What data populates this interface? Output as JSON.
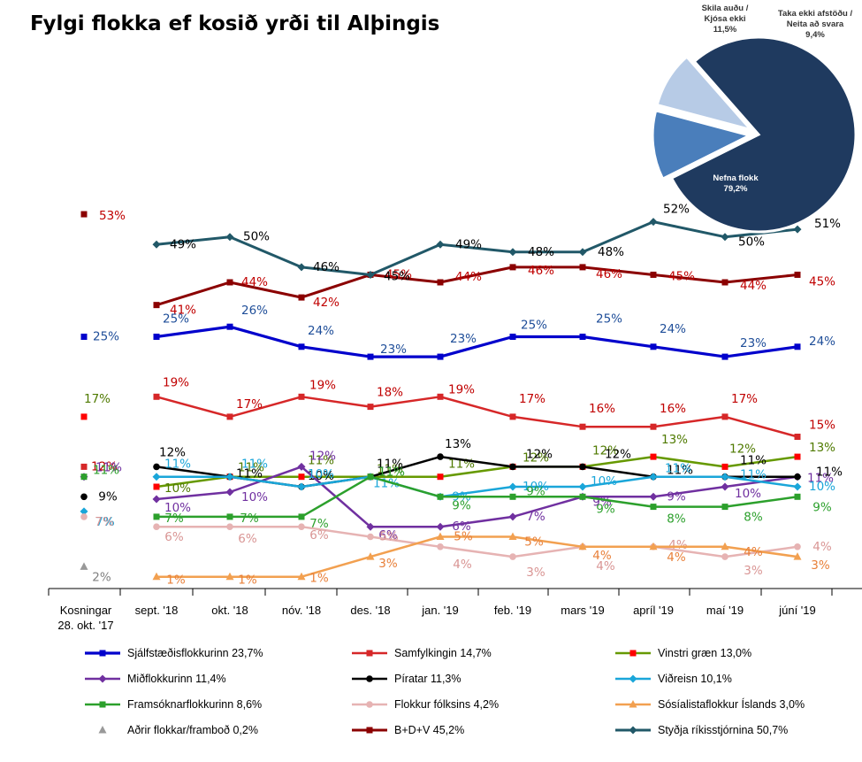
{
  "title": "Fylgi flokka ef kosið yrði til Alþingis",
  "chart_data": [
    {
      "type": "line",
      "categories": [
        "Kosningar\n28. okt. '17",
        "sept. '18",
        "okt. '18",
        "nóv. '18",
        "des. '18",
        "jan. '19",
        "feb. '19",
        "mars '19",
        "apríl '19",
        "maí '19",
        "júní '19"
      ],
      "series": [
        {
          "name": "Sjálfstæðisflokkurinn 23,7%",
          "color": "#0000cc",
          "marker": "square",
          "width": 3.2,
          "values": [
            25,
            25,
            26,
            24,
            23,
            23,
            25,
            25,
            24,
            23,
            24
          ],
          "labels": [
            "25%",
            "25%",
            "26%",
            "24%",
            "23%",
            "23%",
            "25%",
            "25%",
            "24%",
            "23%",
            "24%"
          ],
          "label_color": "#1f4e99"
        },
        {
          "name": "Samfylkingin 14,7%",
          "color": "#d62728",
          "marker": "square",
          "width": 2.5,
          "values": [
            12,
            19,
            17,
            19,
            18,
            19,
            17,
            16,
            16,
            17,
            15
          ],
          "labels": [
            "12%",
            "19%",
            "17%",
            "19%",
            "18%",
            "19%",
            "17%",
            "16%",
            "16%",
            "17%",
            "15%"
          ],
          "label_color": "#c00000"
        },
        {
          "name": "Vinstri græn 13,0%",
          "color": "#669900",
          "marker": "square-red",
          "width": 2.5,
          "values": [
            17,
            10,
            11,
            11,
            11,
            11,
            12,
            12,
            13,
            12,
            13
          ],
          "labels": [
            "17%",
            "10%",
            "11%",
            "11%",
            "11%",
            "11%",
            "12%",
            "12%",
            "13%",
            "12%",
            "13%"
          ],
          "label_color": "#4f7a00"
        },
        {
          "name": "Miðflokkurinn 11,4%",
          "color": "#7030a0",
          "marker": "diamond",
          "width": 2.5,
          "values": [
            11,
            10,
            10,
            12,
            6,
            6,
            7,
            9,
            9,
            10,
            11
          ],
          "labels": [
            "11%",
            "10%",
            "10%",
            "12%",
            "6%",
            "6%",
            "7%",
            "9%",
            "9%",
            "10%",
            "11%"
          ],
          "label_color": "#7030a0"
        },
        {
          "name": "Píratar 11,3%",
          "color": "#000000",
          "marker": "circle",
          "width": 2.5,
          "values": [
            9,
            12,
            11,
            10,
            11,
            13,
            12,
            12,
            11,
            11,
            11
          ],
          "labels": [
            "9%",
            "12%",
            "11%",
            "10%",
            "11%",
            "13%",
            "12%",
            "12%",
            "11%",
            "11%",
            "11%"
          ],
          "label_color": "#000000"
        },
        {
          "name": "Viðreisn 10,1%",
          "color": "#1aa6d9",
          "marker": "diamond",
          "width": 2.5,
          "values": [
            7,
            11,
            11,
            10,
            11,
            9,
            10,
            10,
            11,
            11,
            10
          ],
          "labels": [
            "7%",
            "11%",
            "11%",
            "10%",
            "11%",
            "9%",
            "10%",
            "10%",
            "11%",
            "11%",
            "10%"
          ],
          "label_color": "#1aa6d9"
        },
        {
          "name": "Framsóknarflokkurinn 8,6%",
          "color": "#2ca02c",
          "marker": "square",
          "width": 2.5,
          "values": [
            11,
            7,
            7,
            7,
            11,
            9,
            9,
            9,
            8,
            8,
            9
          ],
          "labels": [
            "11%",
            "7%",
            "7%",
            "7%",
            "11%",
            "9%",
            "9%",
            "9%",
            "8%",
            "8%",
            "9%"
          ],
          "label_color": "#2ca02c"
        },
        {
          "name": "Flokkur fólksins 4,2%",
          "color": "#e6b3b3",
          "marker": "circle",
          "width": 2.5,
          "values": [
            7,
            6,
            6,
            6,
            5,
            4,
            3,
            4,
            4,
            3,
            4
          ],
          "labels": [
            "7%",
            "6%",
            "6%",
            "6%",
            "5%",
            "4%",
            "3%",
            "4%",
            "4%",
            "3%",
            "4%"
          ],
          "label_color": "#d99594"
        },
        {
          "name": "Sósíalistaflokkur Íslands 3,0%",
          "color": "#f2a050",
          "marker": "triangle",
          "width": 2.5,
          "values": [
            null,
            1,
            1,
            1,
            3,
            5,
            5,
            4,
            4,
            4,
            3
          ],
          "labels": [
            "",
            "1%",
            "1%",
            "1%",
            "3%",
            "5%",
            "5%",
            "4%",
            "4%",
            "4%",
            "3%"
          ],
          "label_color": "#e8803a"
        },
        {
          "name": "Aðrir flokkar/framboð 0,2%",
          "color": "#999999",
          "marker": "triangle",
          "width": 0,
          "values": [
            2,
            null,
            null,
            null,
            null,
            null,
            null,
            null,
            null,
            null,
            null
          ],
          "labels": [
            "2%",
            "",
            "",
            "",
            "",
            "",
            "",
            "",
            "",
            "",
            ""
          ],
          "label_color": "#808080"
        },
        {
          "name": "B+D+V 45,2%",
          "color": "#8b0000",
          "marker": "square",
          "width": 3,
          "values": [
            53,
            41,
            44,
            42,
            45,
            44,
            46,
            46,
            45,
            44,
            45
          ],
          "labels": [
            "53%",
            "41%",
            "44%",
            "42%",
            "45%",
            "44%",
            "46%",
            "46%",
            "45%",
            "44%",
            "45%"
          ],
          "label_color": "#c00000"
        },
        {
          "name": "Styðja ríkisstjórnina 50,7%",
          "color": "#215868",
          "marker": "diamond",
          "width": 3,
          "values": [
            null,
            49,
            50,
            46,
            45,
            49,
            48,
            48,
            52,
            50,
            51
          ],
          "labels": [
            "",
            "49%",
            "50%",
            "46%",
            "45%",
            "49%",
            "48%",
            "48%",
            "52%",
            "50%",
            "51%"
          ],
          "label_color": "#000000"
        }
      ]
    },
    {
      "type": "pie",
      "slices": [
        {
          "label": "Nefna flokk",
          "value": 79.2,
          "value_label": "79,2%",
          "color": "#1f3a5f"
        },
        {
          "label": "Skila auðu / Kjósa ekki",
          "value": 11.5,
          "value_label": "11,5%",
          "color": "#4a7ebb"
        },
        {
          "label": "Taka ekki afstöðu / Neita að svara",
          "value": 9.4,
          "value_label": "9,4%",
          "color": "#b7cbe6"
        }
      ]
    }
  ]
}
